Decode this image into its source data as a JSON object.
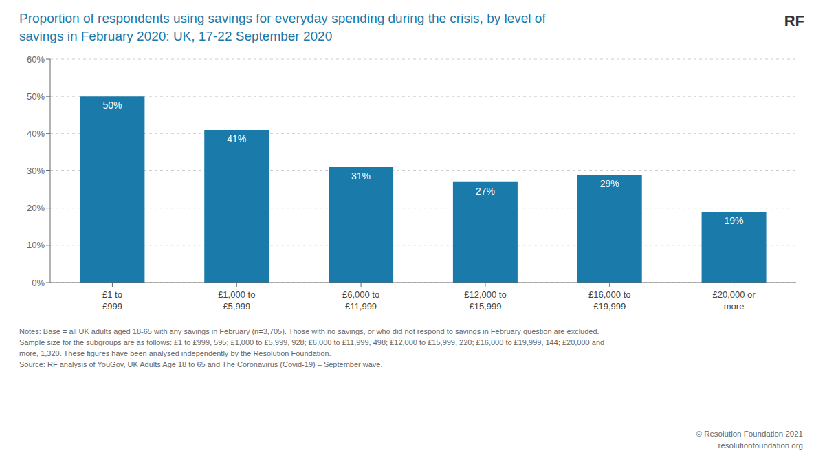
{
  "chart_data": {
    "type": "bar",
    "title": "Proportion of respondents using savings for everyday spending during the crisis, by level of\nsavings in February 2020: UK, 17-22 September 2020",
    "categories": [
      "£1 to\n£999",
      "£1,000 to\n£5,999",
      "£6,000 to\n£11,999",
      "£12,000 to\n£15,999",
      "£16,000 to\n£19,999",
      "£20,000 or\nmore"
    ],
    "values": [
      50,
      41,
      31,
      27,
      29,
      19
    ],
    "value_labels": [
      "50%",
      "41%",
      "31%",
      "27%",
      "29%",
      "19%"
    ],
    "data_labels": true,
    "color": "#1a7aaa",
    "ylim": [
      0,
      60
    ],
    "yticks": [
      {
        "value": 0,
        "label": "0%"
      },
      {
        "value": 10,
        "label": "10%"
      },
      {
        "value": 20,
        "label": "20%"
      },
      {
        "value": 30,
        "label": "30%"
      },
      {
        "value": 40,
        "label": "40%"
      },
      {
        "value": 50,
        "label": "50%"
      },
      {
        "value": 60,
        "label": "60%"
      }
    ],
    "grid": true,
    "annotations": [
      "Notes: Base = all UK adults aged 18-65 with any savings in February (n=3,705). Those with no savings, or who did not respond to savings in February question are excluded.",
      "Sample size for the subgroups are as follows: £1 to £999, 595; £1,000 to £5,999, 928; £6,000 to £11,999, 498; £12,000 to £15,999, 220; £16,000 to £19,999, 144; £20,000 and",
      "more, 1,320. These figures have been analysed independently by the Resolution Foundation.",
      "Source: RF analysis of YouGov, UK Adults Age 18 to 65 and The Coronavirus (Covid-19) – September wave.",
      "© Resolution Foundation 2021",
      "resolutionfoundation.org",
      "RF"
    ]
  }
}
